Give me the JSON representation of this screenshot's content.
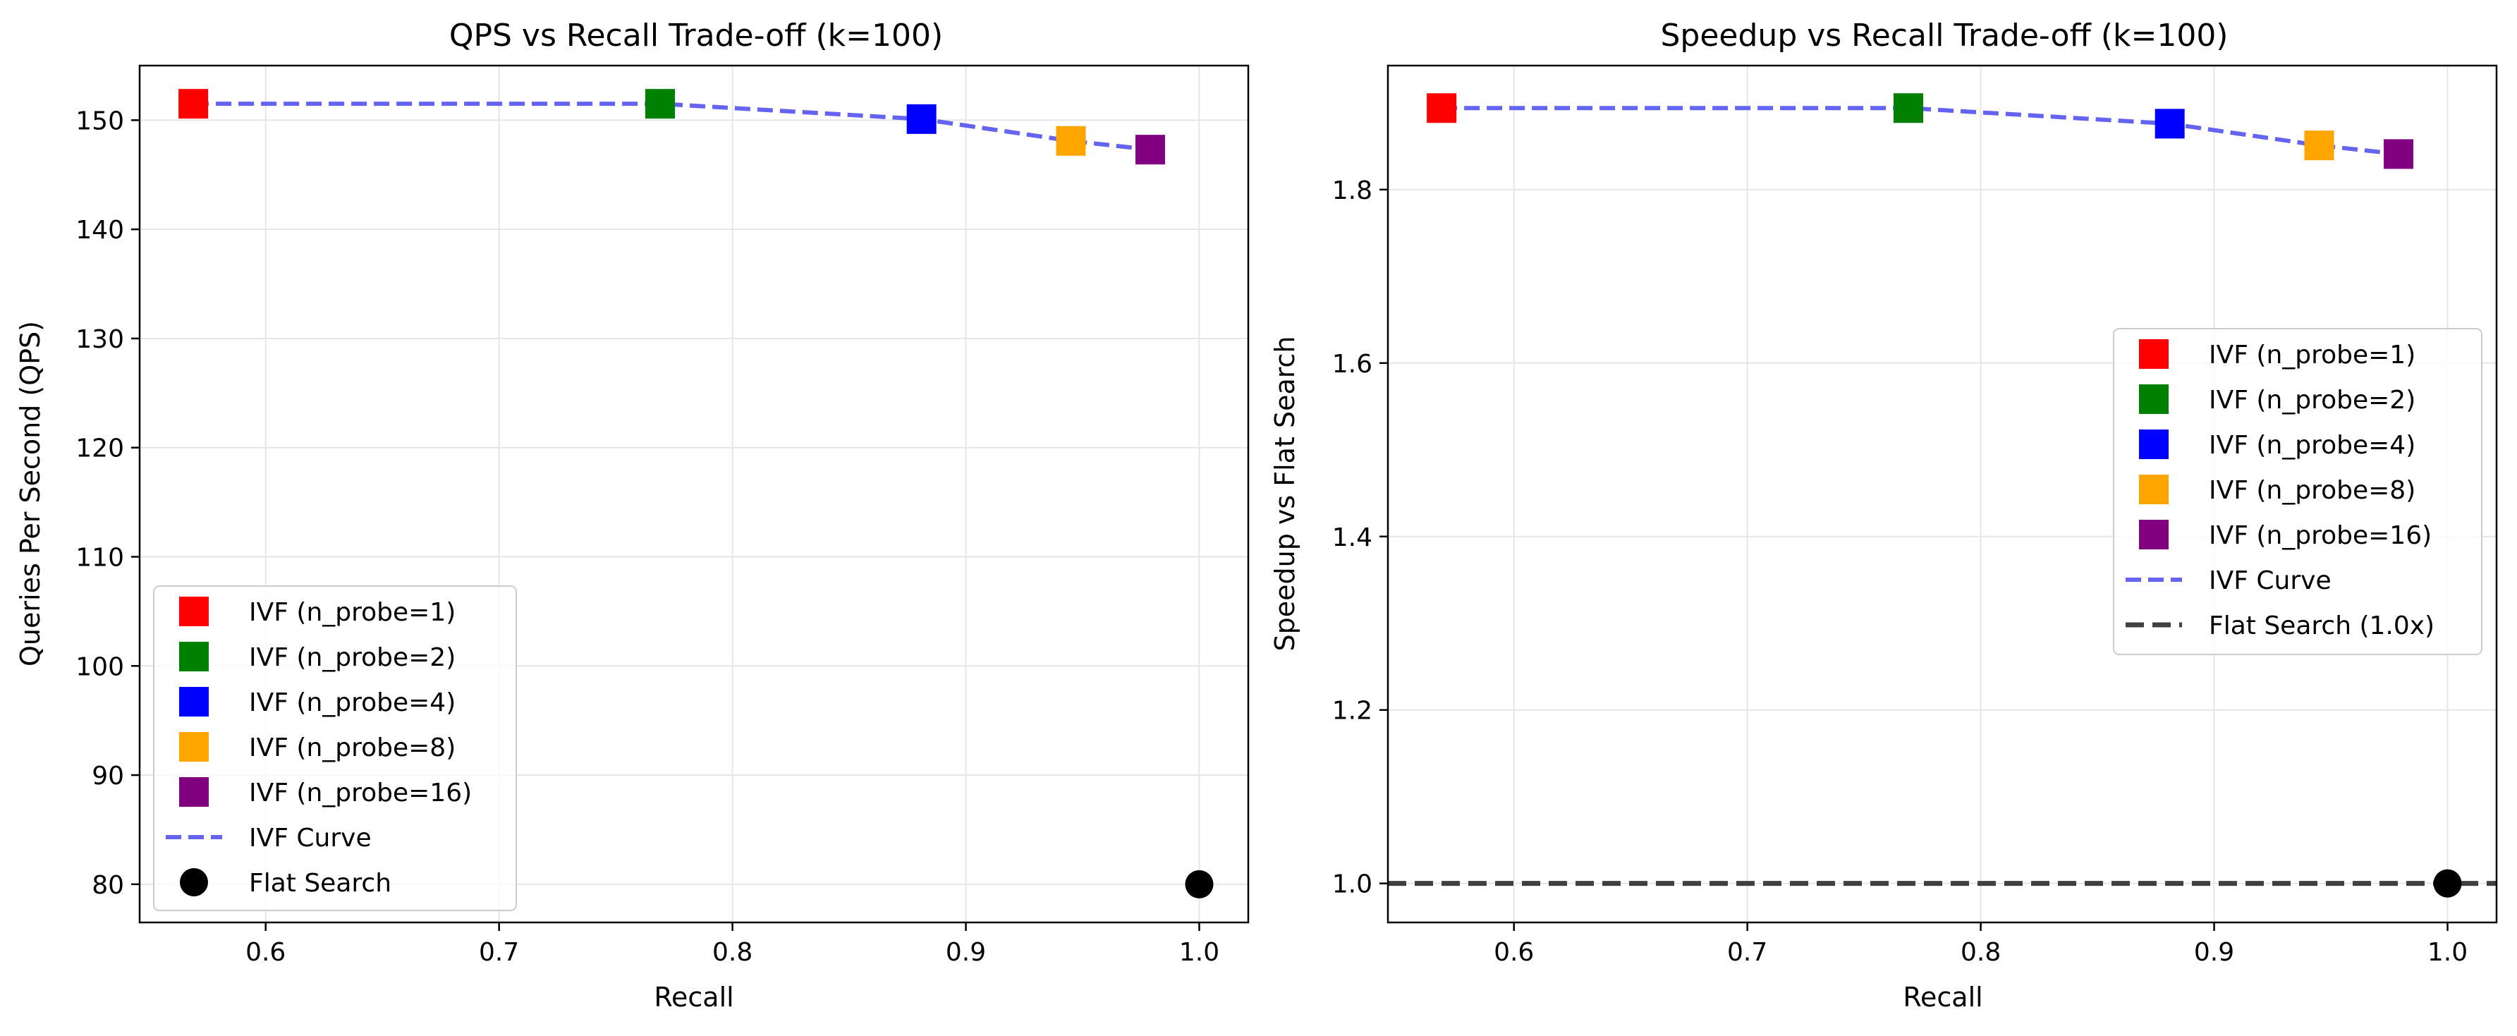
{
  "colors": {
    "n_probe_1": "#ff0000",
    "n_probe_2": "#008000",
    "n_probe_4": "#0000ff",
    "n_probe_8": "#ffa500",
    "n_probe_16": "#800080",
    "ivf_curve": "#6464f0",
    "flat": "#000000",
    "flat_line": "#404040"
  },
  "chart_data": [
    {
      "type": "scatter",
      "title": "QPS vs Recall Trade-off (k=100)",
      "xlabel": "Recall",
      "ylabel": "Queries Per Second (QPS)",
      "xlim": [
        0.546,
        1.021
      ],
      "ylim": [
        76.5,
        155.0
      ],
      "xticks": [
        0.6,
        0.7,
        0.8,
        0.9,
        1.0
      ],
      "xtick_labels": [
        "0.6",
        "0.7",
        "0.8",
        "0.9",
        "1.0"
      ],
      "yticks": [
        80,
        90,
        100,
        110,
        120,
        130,
        140,
        150
      ],
      "ytick_labels": [
        "80",
        "90",
        "100",
        "110",
        "120",
        "130",
        "140",
        "150"
      ],
      "grid": true,
      "legend_position": "lower-left",
      "series": [
        {
          "name": "IVF (n_probe=1)",
          "marker": "square",
          "color_key": "n_probe_1",
          "points": [
            [
              0.569,
              151.5
            ]
          ]
        },
        {
          "name": "IVF (n_probe=2)",
          "marker": "square",
          "color_key": "n_probe_2",
          "points": [
            [
              0.769,
              151.5
            ]
          ]
        },
        {
          "name": "IVF (n_probe=4)",
          "marker": "square",
          "color_key": "n_probe_4",
          "points": [
            [
              0.881,
              150.1
            ]
          ]
        },
        {
          "name": "IVF (n_probe=8)",
          "marker": "square",
          "color_key": "n_probe_8",
          "points": [
            [
              0.945,
              148.1
            ]
          ]
        },
        {
          "name": "IVF (n_probe=16)",
          "marker": "square",
          "color_key": "n_probe_16",
          "points": [
            [
              0.979,
              147.3
            ]
          ]
        },
        {
          "name": "IVF Curve",
          "marker": "dashed-line",
          "color_key": "ivf_curve",
          "points": [
            [
              0.569,
              151.5
            ],
            [
              0.769,
              151.5
            ],
            [
              0.881,
              150.1
            ],
            [
              0.945,
              148.1
            ],
            [
              0.979,
              147.3
            ]
          ]
        },
        {
          "name": "Flat Search",
          "marker": "circle",
          "color_key": "flat",
          "points": [
            [
              1.0,
              80.0
            ]
          ]
        }
      ]
    },
    {
      "type": "scatter",
      "title": "Speedup vs Recall Trade-off (k=100)",
      "xlabel": "Recall",
      "ylabel": "Speedup vs Flat Search",
      "xlim": [
        0.546,
        1.021
      ],
      "ylim": [
        0.955,
        1.943
      ],
      "xticks": [
        0.6,
        0.7,
        0.8,
        0.9,
        1.0
      ],
      "xtick_labels": [
        "0.6",
        "0.7",
        "0.8",
        "0.9",
        "1.0"
      ],
      "yticks": [
        1.0,
        1.2,
        1.4,
        1.6,
        1.8
      ],
      "ytick_labels": [
        "1.0",
        "1.2",
        "1.4",
        "1.6",
        "1.8"
      ],
      "grid": true,
      "legend_position": "center-right",
      "series": [
        {
          "name": "IVF (n_probe=1)",
          "marker": "square",
          "color_key": "n_probe_1",
          "points": [
            [
              0.569,
              1.894
            ]
          ]
        },
        {
          "name": "IVF (n_probe=2)",
          "marker": "square",
          "color_key": "n_probe_2",
          "points": [
            [
              0.769,
              1.894
            ]
          ]
        },
        {
          "name": "IVF (n_probe=4)",
          "marker": "square",
          "color_key": "n_probe_4",
          "points": [
            [
              0.881,
              1.876
            ]
          ]
        },
        {
          "name": "IVF (n_probe=8)",
          "marker": "square",
          "color_key": "n_probe_8",
          "points": [
            [
              0.945,
              1.851
            ]
          ]
        },
        {
          "name": "IVF (n_probe=16)",
          "marker": "square",
          "color_key": "n_probe_16",
          "points": [
            [
              0.979,
              1.841
            ]
          ]
        },
        {
          "name": "IVF Curve",
          "marker": "dashed-line",
          "color_key": "ivf_curve",
          "points": [
            [
              0.569,
              1.894
            ],
            [
              0.769,
              1.894
            ],
            [
              0.881,
              1.876
            ],
            [
              0.945,
              1.851
            ],
            [
              0.979,
              1.841
            ]
          ]
        },
        {
          "name": "Flat Search (1.0x)",
          "marker": "dashed-hline",
          "color_key": "flat_line",
          "y": 1.0
        },
        {
          "name": "",
          "marker": "circle",
          "color_key": "flat",
          "points": [
            [
              1.0,
              1.0
            ]
          ]
        }
      ]
    }
  ]
}
